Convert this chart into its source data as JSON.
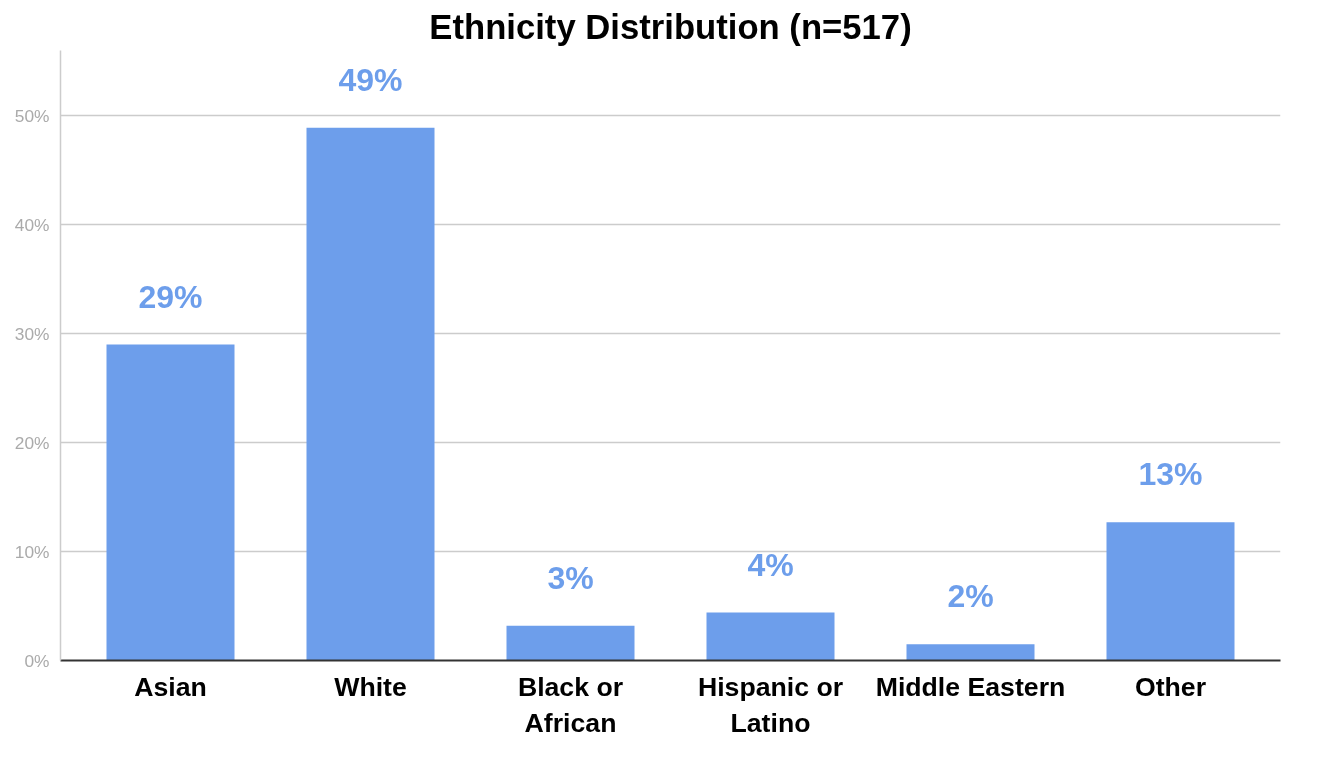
{
  "chart_data": {
    "type": "bar",
    "title": "Ethnicity Distribution (n=517)",
    "categories": [
      "Asian",
      "White",
      "Black or African",
      "Hispanic or Latino",
      "Middle Eastern",
      "Other"
    ],
    "values": [
      29.0,
      48.9,
      3.2,
      4.4,
      1.5,
      12.7
    ],
    "value_labels": [
      "29%",
      "49%",
      "3%",
      "4%",
      "2%",
      "13%"
    ],
    "color": "#6d9eeb",
    "ylim": [
      0,
      56
    ],
    "yticks": [
      {
        "value": 0,
        "label": "0%"
      },
      {
        "value": 10,
        "label": "10%"
      },
      {
        "value": 20,
        "label": "20%"
      },
      {
        "value": 30,
        "label": "30%"
      },
      {
        "value": 40,
        "label": "40%"
      },
      {
        "value": 50,
        "label": "50%"
      }
    ],
    "grid": "y"
  }
}
